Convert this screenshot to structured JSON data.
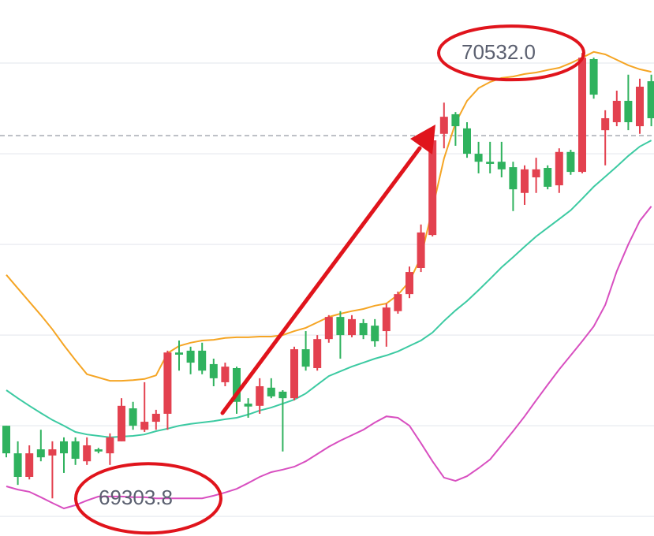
{
  "chart_data": {
    "type": "candlestick",
    "ylim": [
      69200,
      70678
    ],
    "gridlines": [
      69254,
      69504,
      69754,
      70004,
      70254,
      70504
    ],
    "reference_line": 70304,
    "up_color": "#e3414f",
    "down_color": "#2fb25e",
    "ohlc": [
      [
        69504,
        69504,
        69417,
        69428
      ],
      [
        69428,
        69461,
        69341,
        69363
      ],
      [
        69363,
        69450,
        69356,
        69428
      ],
      [
        69439,
        69493,
        69406,
        69417
      ],
      [
        69422,
        69461,
        69303.8,
        69439
      ],
      [
        69461,
        69472,
        69374,
        69428
      ],
      [
        69461,
        69472,
        69396,
        69413
      ],
      [
        69406,
        69472,
        69396,
        69450
      ],
      [
        69439,
        69443,
        69428,
        69433
      ],
      [
        69428,
        69483,
        69396,
        69472
      ],
      [
        69461,
        69580,
        69461,
        69559
      ],
      [
        69552,
        69570,
        69493,
        69504
      ],
      [
        69493,
        69624,
        69487,
        69515
      ],
      [
        69515,
        69548,
        69493,
        69537
      ],
      [
        69537,
        69711,
        69493,
        69706
      ],
      [
        69706,
        69739,
        69656,
        69700
      ],
      [
        69711,
        69722,
        69646,
        69678
      ],
      [
        69711,
        69733,
        69646,
        69656
      ],
      [
        69674,
        69689,
        69613,
        69635
      ],
      [
        69624,
        69678,
        69613,
        69667
      ],
      [
        69663,
        69667,
        69537,
        69570
      ],
      [
        69565,
        69580,
        69526,
        69557
      ],
      [
        69559,
        69635,
        69537,
        69613
      ],
      [
        69609,
        69635,
        69580,
        69585
      ],
      [
        69598,
        69602,
        69433,
        69580
      ],
      [
        69580,
        69722,
        69574,
        69715
      ],
      [
        69715,
        69765,
        69656,
        69667
      ],
      [
        69663,
        69754,
        69656,
        69743
      ],
      [
        69743,
        69809,
        69733,
        69804
      ],
      [
        69804,
        69820,
        69689,
        69754
      ],
      [
        69754,
        69809,
        69748,
        69798
      ],
      [
        69787,
        69798,
        69743,
        69754
      ],
      [
        69780,
        69798,
        69722,
        69737
      ],
      [
        69765,
        69841,
        69722,
        69830
      ],
      [
        69820,
        69874,
        69813,
        69867
      ],
      [
        69867,
        69943,
        69856,
        69928
      ],
      [
        69939,
        70059,
        69928,
        70037
      ],
      [
        70030,
        70298,
        70026,
        70291
      ],
      [
        70309,
        70395,
        70269,
        70356
      ],
      [
        70363,
        70369,
        70276,
        70330
      ],
      [
        70324,
        70341,
        70243,
        70254
      ],
      [
        70254,
        70287,
        70200,
        70232
      ],
      [
        70232,
        70287,
        70200,
        70226
      ],
      [
        70232,
        70287,
        70189,
        70211
      ],
      [
        70217,
        70232,
        70096,
        70156
      ],
      [
        70146,
        70222,
        70113,
        70211
      ],
      [
        70189,
        70243,
        70146,
        70211
      ],
      [
        70215,
        70222,
        70156,
        70163
      ],
      [
        70167,
        70269,
        70146,
        70259
      ],
      [
        70259,
        70265,
        70196,
        70204
      ],
      [
        70204,
        70532,
        70200,
        70519
      ],
      [
        70515,
        70519,
        70406,
        70417
      ],
      [
        70319,
        70374,
        70222,
        70352
      ],
      [
        70341,
        70428,
        70330,
        70400
      ],
      [
        70400,
        70472,
        70319,
        70341
      ],
      [
        70330,
        70461,
        70309,
        70439
      ],
      [
        70454,
        70472,
        70330,
        70352
      ]
    ],
    "series": [
      {
        "color": "#f5a524",
        "values": [
          69920,
          69883,
          69846,
          69809,
          69770,
          69726,
          69685,
          69646,
          69637,
          69628,
          69628,
          69630,
          69633,
          69643,
          69704,
          69724,
          69733,
          69739,
          69741,
          69746,
          69748,
          69748,
          69750,
          69750,
          69754,
          69765,
          69774,
          69789,
          69804,
          69813,
          69820,
          69826,
          69835,
          69841,
          69865,
          69902,
          69969,
          70102,
          70241,
          70339,
          70400,
          70435,
          70452,
          70463,
          70467,
          70474,
          70478,
          70485,
          70491,
          70504,
          70519,
          70535,
          70528,
          70513,
          70498,
          70487,
          70480
        ]
      },
      {
        "color": "#3ccaa2",
        "values": [
          69602,
          69580,
          69559,
          69539,
          69520,
          69504,
          69487,
          69480,
          69476,
          69472,
          69474,
          69476,
          69480,
          69489,
          69496,
          69504,
          69509,
          69513,
          69517,
          69522,
          69526,
          69535,
          69546,
          69554,
          69565,
          69576,
          69593,
          69617,
          69641,
          69654,
          69667,
          69678,
          69689,
          69698,
          69709,
          69724,
          69739,
          69761,
          69793,
          69822,
          69848,
          69878,
          69909,
          69941,
          69969,
          69998,
          70026,
          70050,
          70074,
          70098,
          70130,
          70163,
          70191,
          70219,
          70248,
          70274,
          70291
        ]
      },
      {
        "color": "#d84fc0",
        "values": [
          69337,
          69328,
          69322,
          69307,
          69291,
          69276,
          69285,
          69298,
          69309,
          69309,
          69309,
          69307,
          69307,
          69304,
          69304,
          69304,
          69304,
          69304,
          69311,
          69320,
          69330,
          69346,
          69363,
          69376,
          69383,
          69391,
          69406,
          69426,
          69446,
          69463,
          69478,
          69493,
          69513,
          69530,
          69526,
          69504,
          69456,
          69406,
          69361,
          69352,
          69365,
          69387,
          69411,
          69450,
          69489,
          69530,
          69574,
          69617,
          69659,
          69698,
          69737,
          69778,
          69837,
          69930,
          70004,
          70069,
          70109
        ]
      }
    ],
    "annotations": [
      {
        "value": 70532,
        "label": "70532.0"
      },
      {
        "value": 69303.8,
        "label": "69303.8"
      }
    ]
  }
}
